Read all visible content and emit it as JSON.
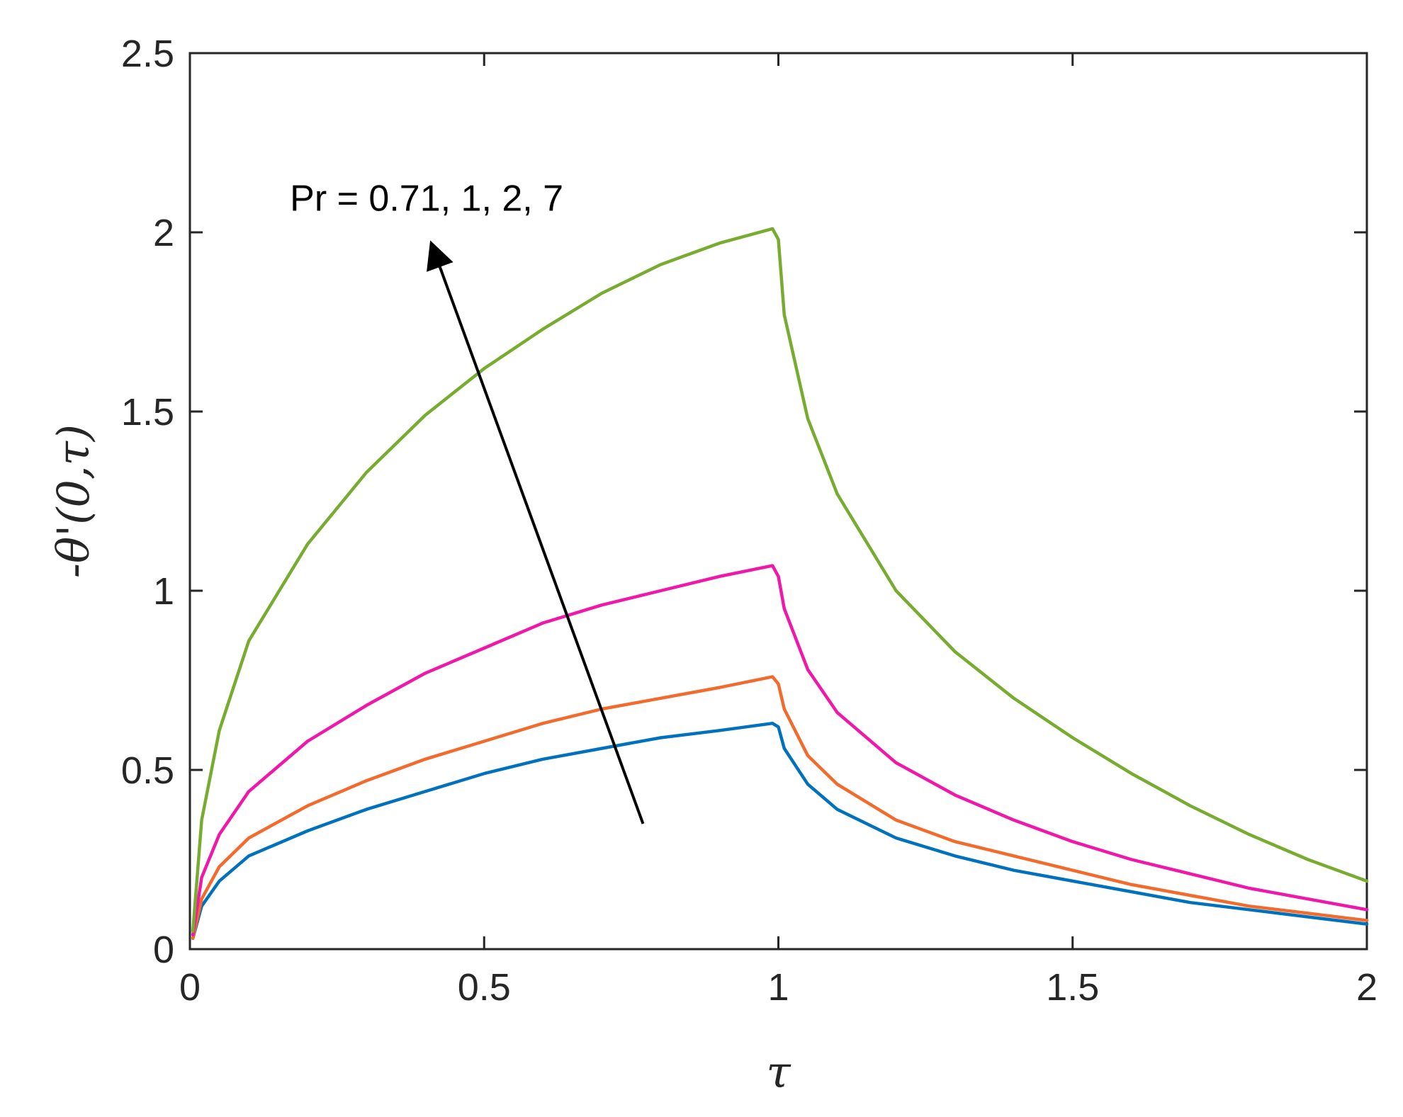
{
  "chart_data": {
    "type": "line",
    "title": "",
    "xlabel": "τ",
    "ylabel": "-θ'(0,τ)",
    "xlim": [
      0,
      2
    ],
    "ylim": [
      0,
      2.5
    ],
    "xticks": [
      "0",
      "0.5",
      "1",
      "1.5",
      "2"
    ],
    "yticks": [
      "0",
      "0.5",
      "1",
      "1.5",
      "2",
      "2.5"
    ],
    "grid": false,
    "legend": "none",
    "annotation": {
      "text": "Pr = 0.71, 1, 2, 7",
      "arrow_from": [
        0.77,
        0.35
      ],
      "arrow_to": [
        0.41,
        1.97
      ]
    },
    "series": [
      {
        "color": "#0072BD",
        "x": [
          0.005,
          0.02,
          0.05,
          0.1,
          0.2,
          0.3,
          0.4,
          0.5,
          0.6,
          0.7,
          0.8,
          0.9,
          0.99,
          1.0,
          1.01,
          1.05,
          1.1,
          1.2,
          1.3,
          1.4,
          1.5,
          1.6,
          1.7,
          1.8,
          1.9,
          2.0
        ],
        "y": [
          0.03,
          0.12,
          0.19,
          0.26,
          0.33,
          0.39,
          0.44,
          0.49,
          0.53,
          0.56,
          0.59,
          0.61,
          0.63,
          0.62,
          0.56,
          0.46,
          0.39,
          0.31,
          0.26,
          0.22,
          0.19,
          0.16,
          0.13,
          0.11,
          0.09,
          0.07
        ]
      },
      {
        "color": "#F26B2D",
        "x": [
          0.005,
          0.02,
          0.05,
          0.1,
          0.2,
          0.3,
          0.4,
          0.5,
          0.6,
          0.7,
          0.8,
          0.9,
          0.99,
          1.0,
          1.01,
          1.05,
          1.1,
          1.2,
          1.3,
          1.4,
          1.5,
          1.6,
          1.7,
          1.8,
          1.9,
          2.0
        ],
        "y": [
          0.03,
          0.14,
          0.23,
          0.31,
          0.4,
          0.47,
          0.53,
          0.58,
          0.63,
          0.67,
          0.7,
          0.73,
          0.76,
          0.74,
          0.67,
          0.54,
          0.46,
          0.36,
          0.3,
          0.26,
          0.22,
          0.18,
          0.15,
          0.12,
          0.1,
          0.08
        ]
      },
      {
        "color": "#F018A8",
        "x": [
          0.005,
          0.02,
          0.05,
          0.1,
          0.2,
          0.3,
          0.4,
          0.5,
          0.6,
          0.7,
          0.8,
          0.9,
          0.99,
          1.0,
          1.01,
          1.05,
          1.1,
          1.2,
          1.3,
          1.4,
          1.5,
          1.6,
          1.7,
          1.8,
          1.9,
          2.0
        ],
        "y": [
          0.04,
          0.2,
          0.32,
          0.44,
          0.58,
          0.68,
          0.77,
          0.84,
          0.91,
          0.96,
          1.0,
          1.04,
          1.07,
          1.04,
          0.95,
          0.78,
          0.66,
          0.52,
          0.43,
          0.36,
          0.3,
          0.25,
          0.21,
          0.17,
          0.14,
          0.11
        ]
      },
      {
        "color": "#77AC30",
        "x": [
          0.005,
          0.02,
          0.05,
          0.1,
          0.2,
          0.3,
          0.4,
          0.5,
          0.6,
          0.7,
          0.8,
          0.9,
          0.99,
          1.0,
          1.01,
          1.05,
          1.1,
          1.2,
          1.3,
          1.4,
          1.5,
          1.6,
          1.7,
          1.8,
          1.9,
          2.0
        ],
        "y": [
          0.05,
          0.36,
          0.61,
          0.86,
          1.13,
          1.33,
          1.49,
          1.62,
          1.73,
          1.83,
          1.91,
          1.97,
          2.01,
          1.98,
          1.77,
          1.48,
          1.27,
          1.0,
          0.83,
          0.7,
          0.59,
          0.49,
          0.4,
          0.32,
          0.25,
          0.19
        ]
      }
    ]
  }
}
